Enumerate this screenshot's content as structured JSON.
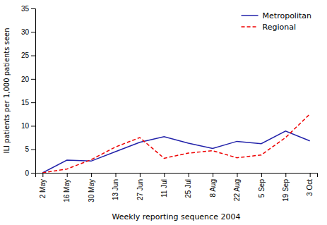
{
  "chart_data": {
    "type": "line",
    "xlabel": "Weekly reporting sequence 2004",
    "ylabel": "ILI patients per 1,000 patients seen",
    "categories": [
      "2 May",
      "16 May",
      "30 May",
      "13 Jun",
      "27 Jun",
      "11 Jul",
      "25 Jul",
      "8 Aug",
      "22 Aug",
      "5 Sep",
      "19 Sep",
      "3 Oct"
    ],
    "series": [
      {
        "name": "Metropolitan",
        "color": "#2222aa",
        "line_style": "solid",
        "values": [
          0.0,
          2.7,
          2.5,
          4.5,
          6.5,
          7.7,
          6.3,
          5.2,
          6.7,
          6.2,
          8.9,
          6.8
        ]
      },
      {
        "name": "Regional",
        "color": "#ee0000",
        "line_style": "dashed",
        "values": [
          0.0,
          0.8,
          2.8,
          5.5,
          7.5,
          3.1,
          4.2,
          4.7,
          3.2,
          3.8,
          7.5,
          12.5
        ]
      }
    ],
    "ylim": [
      0,
      35
    ],
    "yticks": [
      0,
      5,
      10,
      15,
      20,
      25,
      30,
      35
    ],
    "grid": false,
    "legend": "upper right"
  }
}
